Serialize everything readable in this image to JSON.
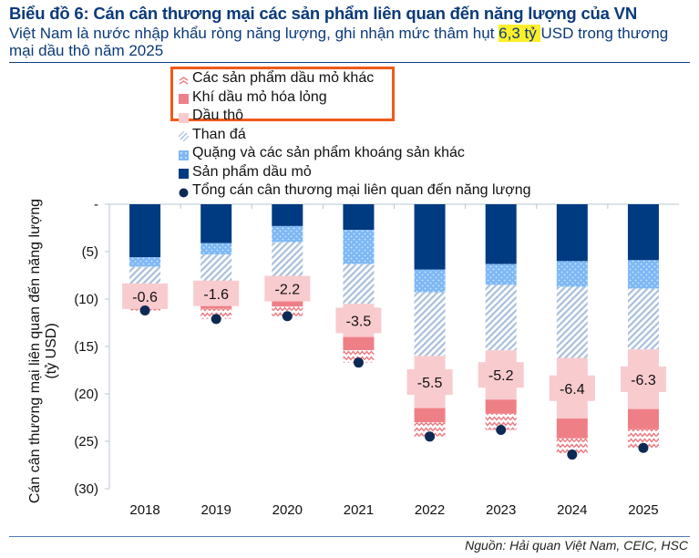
{
  "header": {
    "title": "Biểu đồ 6: Cán cân thương mại các sản phẩm liên quan đến năng lượng của VN",
    "subtitle_pre": "Việt Nam là nước nhập khẩu ròng năng lượng, ghi nhận mức thâm hụt ",
    "subtitle_highlight": "6,3 tỷ ",
    "subtitle_post": "USD trong thương mại dầu thô năm 2025"
  },
  "source": "Nguồn: Hải quan Việt Nam, CEIC, HSC",
  "colors": {
    "title": "#0b3a7a",
    "dark_blue": "#003a80",
    "ore_blue": "#7db8f5",
    "coal_stripe": "#a9bfdc",
    "crude_pink": "#f8cbcf",
    "lpg_red": "#ef7f87",
    "other_zigzag": "#ec7b82",
    "dot": "#0d2a55",
    "highlight_box": "#f15a1a",
    "highlight_text": "#ffef2a"
  },
  "chart_data": {
    "type": "bar",
    "stacked": true,
    "title": "Biểu đồ 6: Cán cân thương mại các sản phẩm liên quan đến năng lượng của VN",
    "xlabel": "",
    "ylabel_line1": "Cán cân thương mại liên quan đến năng lượng",
    "ylabel_line2": "(tỷ USD)",
    "ylim": [
      -30,
      0
    ],
    "yticks": [
      0,
      -5,
      -10,
      -15,
      -20,
      -25,
      -30
    ],
    "ytick_labels": [
      "-",
      "(5)",
      "(10)",
      "(15)",
      "(20)",
      "(25)",
      "(30)"
    ],
    "categories": [
      "2018",
      "2019",
      "2020",
      "2021",
      "2022",
      "2023",
      "2024",
      "2025"
    ],
    "legend_position": "top-left",
    "legend": [
      {
        "name": "Các sản phẩm dầu mỏ khác",
        "key": "other",
        "highlighted": true
      },
      {
        "name": "Khí dầu mỏ hóa lỏng",
        "key": "lpg",
        "highlighted": true
      },
      {
        "name": "Dầu thô",
        "key": "crude",
        "highlighted": true
      },
      {
        "name": "Than đá",
        "key": "coal",
        "highlighted": false
      },
      {
        "name": "Quặng và các sản phẩm khoáng sản khác",
        "key": "ore",
        "highlighted": false
      },
      {
        "name": "Sản phẩm dầu mỏ",
        "key": "petro",
        "highlighted": false
      },
      {
        "name": "Tổng cán cân thương mại liên quan đến năng lượng",
        "key": "total",
        "highlighted": false
      }
    ],
    "series": [
      {
        "name": "Sản phẩm dầu mỏ",
        "key": "petro",
        "values": [
          -5.6,
          -4.1,
          -2.3,
          -2.7,
          -6.9,
          -6.3,
          -6.0,
          -5.9
        ]
      },
      {
        "name": "Quặng và các sản phẩm khoáng sản khác",
        "key": "ore",
        "values": [
          -1.0,
          -1.2,
          -1.7,
          -3.6,
          -2.4,
          -2.2,
          -2.7,
          -3.0
        ]
      },
      {
        "name": "Than đá",
        "key": "coal",
        "values": [
          -2.8,
          -3.3,
          -3.8,
          -4.2,
          -6.7,
          -6.9,
          -7.5,
          -6.4
        ]
      },
      {
        "name": "Dầu thô",
        "key": "crude",
        "values": [
          -0.6,
          -1.6,
          -2.2,
          -3.5,
          -5.5,
          -5.2,
          -6.4,
          -6.3
        ]
      },
      {
        "name": "Khí dầu mỏ hóa lỏng",
        "key": "lpg",
        "values": [
          -0.3,
          -0.8,
          -0.8,
          -1.4,
          -1.5,
          -1.5,
          -2.1,
          -2.1
        ]
      },
      {
        "name": "Các sản phẩm dầu mỏ khác",
        "key": "other",
        "values": [
          -0.9,
          -1.1,
          -1.0,
          -1.3,
          -1.5,
          -1.7,
          -1.7,
          -2.0
        ]
      }
    ],
    "total": {
      "name": "Tổng cán cân thương mại liên quan đến năng lượng",
      "values": [
        -11.2,
        -12.1,
        -11.8,
        -16.7,
        -24.5,
        -23.8,
        -26.4,
        -25.7
      ]
    },
    "crude_labels": [
      "-0.6",
      "-1.6",
      "-2.2",
      "-3.5",
      "-5.5",
      "-5.2",
      "-6.4",
      "-6.3"
    ]
  }
}
